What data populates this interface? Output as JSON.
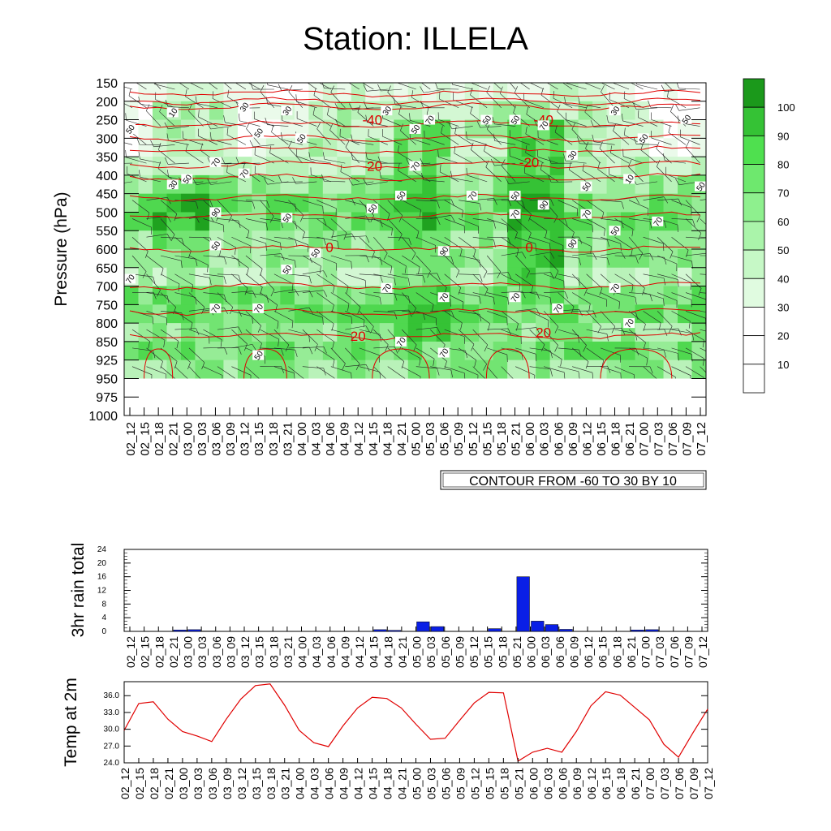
{
  "title": "Station: ILLELA",
  "colors": {
    "shade_levels": [
      "#ffffff",
      "#eafaea",
      "#d3f7d3",
      "#b9f2b9",
      "#96ec96",
      "#72e472",
      "#4fd84f",
      "#35c235",
      "#1fa21f"
    ],
    "isotherm": "#e00000",
    "rain_bar": "#0a1fe6",
    "temp_line": "#e00000"
  },
  "chart_data": [
    {
      "type": "heatmap",
      "name": "time-pressure cross section",
      "ylabel": "Pressure (hPa)",
      "y_ticks": [
        "150",
        "200",
        "250",
        "300",
        "350",
        "400",
        "450",
        "500",
        "550",
        "600",
        "650",
        "700",
        "750",
        "800",
        "850",
        "925",
        "950",
        "975",
        "1000"
      ],
      "x_ticks": [
        "02_12",
        "02_15",
        "02_18",
        "02_21",
        "03_00",
        "03_03",
        "03_06",
        "03_09",
        "03_12",
        "03_15",
        "03_18",
        "03_21",
        "04_00",
        "04_03",
        "04_06",
        "04_09",
        "04_12",
        "04_15",
        "04_18",
        "04_21",
        "05_00",
        "05_03",
        "05_06",
        "05_09",
        "05_12",
        "05_15",
        "05_18",
        "05_21",
        "06_00",
        "06_03",
        "06_06",
        "06_09",
        "06_12",
        "06_15",
        "06_18",
        "06_21",
        "07_00",
        "07_03",
        "07_06",
        "07_09",
        "07_12"
      ],
      "colorbar_labels": [
        "10",
        "20",
        "30",
        "40",
        "50",
        "60",
        "70",
        "80",
        "90",
        "100"
      ],
      "contour_note": "CONTOUR FROM -60 TO 30 BY 10",
      "isotherm_labels": [
        {
          "text": "-40",
          "x": "04_15",
          "p": 250
        },
        {
          "text": "-40",
          "x": "06_03",
          "p": 250
        },
        {
          "text": "-20",
          "x": "04_15",
          "p": 375
        },
        {
          "text": "-20",
          "x": "06_00",
          "p": 365
        },
        {
          "text": "0",
          "x": "04_06",
          "p": 595
        },
        {
          "text": "0",
          "x": "06_00",
          "p": 595
        },
        {
          "text": "20",
          "x": "04_12",
          "p": 835
        },
        {
          "text": "20",
          "x": "06_03",
          "p": 825
        }
      ],
      "rh_labels": [
        {
          "text": "10",
          "x": "02_21",
          "p": 230
        },
        {
          "text": "30",
          "x": "03_12",
          "p": 215
        },
        {
          "text": "30",
          "x": "03_21",
          "p": 225
        },
        {
          "text": "30",
          "x": "04_18",
          "p": 225
        },
        {
          "text": "70",
          "x": "05_03",
          "p": 250
        },
        {
          "text": "50",
          "x": "05_15",
          "p": 250
        },
        {
          "text": "50",
          "x": "05_21",
          "p": 250
        },
        {
          "text": "70",
          "x": "06_03",
          "p": 265
        },
        {
          "text": "30",
          "x": "06_18",
          "p": 225
        },
        {
          "text": "50",
          "x": "07_09",
          "p": 248
        },
        {
          "text": "50",
          "x": "02_12",
          "p": 275
        },
        {
          "text": "50",
          "x": "03_15",
          "p": 285
        },
        {
          "text": "50",
          "x": "04_00",
          "p": 300
        },
        {
          "text": "50",
          "x": "05_00",
          "p": 275
        },
        {
          "text": "50",
          "x": "07_00",
          "p": 300
        },
        {
          "text": "70",
          "x": "03_06",
          "p": 365
        },
        {
          "text": "70",
          "x": "03_12",
          "p": 395
        },
        {
          "text": "30",
          "x": "02_21",
          "p": 425
        },
        {
          "text": "50",
          "x": "03_00",
          "p": 410
        },
        {
          "text": "70",
          "x": "05_00",
          "p": 375
        },
        {
          "text": "30",
          "x": "06_09",
          "p": 345
        },
        {
          "text": "10",
          "x": "06_21",
          "p": 410
        },
        {
          "text": "50",
          "x": "07_12",
          "p": 430
        },
        {
          "text": "50",
          "x": "04_21",
          "p": 455
        },
        {
          "text": "70",
          "x": "05_12",
          "p": 455
        },
        {
          "text": "50",
          "x": "05_21",
          "p": 455
        },
        {
          "text": "90",
          "x": "06_03",
          "p": 480
        },
        {
          "text": "50",
          "x": "06_12",
          "p": 430
        },
        {
          "text": "90",
          "x": "03_06",
          "p": 500
        },
        {
          "text": "50",
          "x": "03_21",
          "p": 515
        },
        {
          "text": "50",
          "x": "04_15",
          "p": 490
        },
        {
          "text": "70",
          "x": "05_21",
          "p": 505
        },
        {
          "text": "70",
          "x": "06_12",
          "p": 505
        },
        {
          "text": "70",
          "x": "07_03",
          "p": 525
        },
        {
          "text": "50",
          "x": "06_18",
          "p": 550
        },
        {
          "text": "50",
          "x": "03_06",
          "p": 590
        },
        {
          "text": "50",
          "x": "04_03",
          "p": 610
        },
        {
          "text": "90",
          "x": "05_06",
          "p": 605
        },
        {
          "text": "90",
          "x": "06_09",
          "p": 585
        },
        {
          "text": "50",
          "x": "03_21",
          "p": 655
        },
        {
          "text": "70",
          "x": "02_12",
          "p": 680
        },
        {
          "text": "70",
          "x": "04_18",
          "p": 705
        },
        {
          "text": "70",
          "x": "05_06",
          "p": 730
        },
        {
          "text": "70",
          "x": "05_21",
          "p": 730
        },
        {
          "text": "70",
          "x": "06_18",
          "p": 705
        },
        {
          "text": "70",
          "x": "03_06",
          "p": 760
        },
        {
          "text": "70",
          "x": "03_15",
          "p": 760
        },
        {
          "text": "70",
          "x": "06_06",
          "p": 760
        },
        {
          "text": "70",
          "x": "06_21",
          "p": 800
        },
        {
          "text": "70",
          "x": "04_21",
          "p": 850
        },
        {
          "text": "70",
          "x": "05_06",
          "p": 895
        },
        {
          "text": "50",
          "x": "03_15",
          "p": 905
        }
      ]
    },
    {
      "type": "bar",
      "name": "3hr rain total",
      "ylabel": "3hr rain total",
      "ylim": [
        0,
        24
      ],
      "y_ticks": [
        "0",
        "4",
        "8",
        "12",
        "16",
        "20",
        "24"
      ],
      "categories": [
        "02_12",
        "02_15",
        "02_18",
        "02_21",
        "03_00",
        "03_03",
        "03_06",
        "03_09",
        "03_12",
        "03_15",
        "03_18",
        "03_21",
        "04_00",
        "04_03",
        "04_06",
        "04_09",
        "04_12",
        "04_15",
        "04_18",
        "04_21",
        "05_00",
        "05_03",
        "05_06",
        "05_09",
        "05_12",
        "05_15",
        "05_18",
        "05_21",
        "06_00",
        "06_03",
        "06_06",
        "06_09",
        "06_12",
        "06_15",
        "06_18",
        "06_21",
        "07_00",
        "07_03",
        "07_06",
        "07_09",
        "07_12"
      ],
      "values": [
        0,
        0,
        0,
        0.4,
        0.5,
        0.1,
        0,
        0,
        0,
        0,
        0,
        0,
        0,
        0,
        0,
        0,
        0,
        0.5,
        0.3,
        0,
        2.8,
        1.4,
        0,
        0,
        0,
        0.8,
        0,
        16,
        3.0,
        2.0,
        0.6,
        0,
        0,
        0,
        0,
        0.4,
        0.5,
        0,
        0,
        0,
        0
      ]
    },
    {
      "type": "line",
      "name": "Temp at 2m",
      "ylabel": "Temp at 2m",
      "ylim": [
        24,
        38.5
      ],
      "y_ticks": [
        "24.0",
        "27.0",
        "30.0",
        "33.0",
        "36.0"
      ],
      "categories": [
        "02_12",
        "02_15",
        "02_18",
        "02_21",
        "03_00",
        "03_03",
        "03_06",
        "03_09",
        "03_12",
        "03_15",
        "03_18",
        "03_21",
        "04_00",
        "04_03",
        "04_06",
        "04_09",
        "04_12",
        "04_15",
        "04_18",
        "04_21",
        "05_00",
        "05_03",
        "05_06",
        "05_09",
        "05_12",
        "05_15",
        "05_18",
        "05_21",
        "06_00",
        "06_03",
        "06_06",
        "06_09",
        "06_12",
        "06_15",
        "06_18",
        "06_21",
        "07_00",
        "07_03",
        "07_06",
        "07_09",
        "07_12"
      ],
      "values": [
        29.8,
        34.6,
        34.9,
        31.8,
        29.6,
        28.8,
        27.8,
        31.8,
        35.4,
        37.8,
        38.1,
        34.3,
        29.8,
        27.6,
        26.9,
        30.6,
        33.8,
        35.7,
        35.5,
        33.8,
        30.9,
        28.2,
        28.4,
        31.6,
        34.7,
        36.6,
        36.5,
        24.3,
        25.9,
        26.6,
        25.9,
        29.6,
        34.2,
        36.7,
        36.1,
        33.9,
        31.7,
        27.3,
        25.0,
        29.4,
        33.6
      ]
    }
  ]
}
